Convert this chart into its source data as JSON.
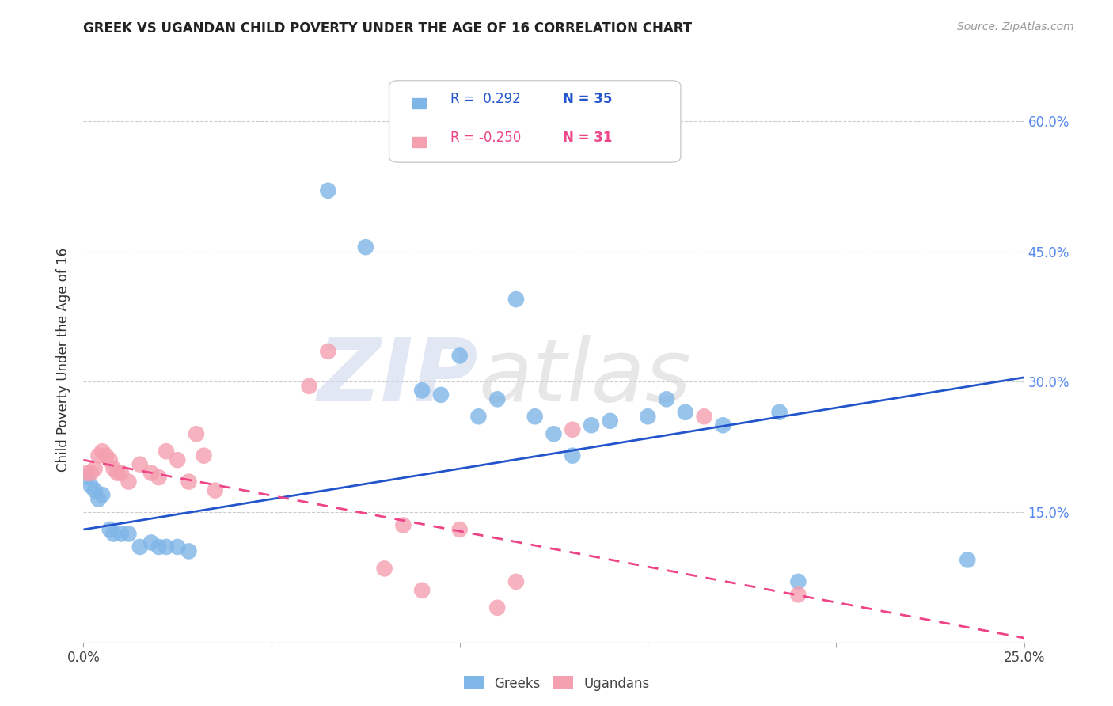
{
  "title": "GREEK VS UGANDAN CHILD POVERTY UNDER THE AGE OF 16 CORRELATION CHART",
  "source": "Source: ZipAtlas.com",
  "ylabel": "Child Poverty Under the Age of 16",
  "xlim": [
    0.0,
    0.25
  ],
  "ylim": [
    0.0,
    0.65
  ],
  "x_ticks": [
    0.0,
    0.05,
    0.1,
    0.15,
    0.2,
    0.25
  ],
  "x_tick_labels": [
    "0.0%",
    "",
    "",
    "",
    "",
    "25.0%"
  ],
  "y_ticks": [
    0.0,
    0.15,
    0.3,
    0.45,
    0.6
  ],
  "y_tick_labels_right": [
    "",
    "15.0%",
    "30.0%",
    "45.0%",
    "60.0%"
  ],
  "grid_color": "#cccccc",
  "background_color": "#ffffff",
  "greek_color": "#7eb6e8",
  "ugandan_color": "#f4a0b0",
  "greek_line_color": "#2255cc",
  "ugandan_line_color": "#ee4488",
  "legend_R_greek": "R =  0.292",
  "legend_N_greek": "N = 35",
  "legend_R_ugandan": "R = -0.250",
  "legend_N_ugandan": "N = 31",
  "greeks_x": [
    0.001,
    0.002,
    0.003,
    0.004,
    0.005,
    0.007,
    0.008,
    0.01,
    0.012,
    0.015,
    0.018,
    0.02,
    0.022,
    0.025,
    0.028,
    0.065,
    0.075,
    0.09,
    0.095,
    0.1,
    0.105,
    0.11,
    0.115,
    0.12,
    0.125,
    0.13,
    0.135,
    0.14,
    0.15,
    0.155,
    0.16,
    0.17,
    0.185,
    0.19,
    0.235
  ],
  "greeks_y": [
    0.19,
    0.18,
    0.175,
    0.165,
    0.17,
    0.13,
    0.125,
    0.125,
    0.125,
    0.11,
    0.115,
    0.11,
    0.11,
    0.11,
    0.105,
    0.52,
    0.455,
    0.29,
    0.285,
    0.33,
    0.26,
    0.28,
    0.395,
    0.26,
    0.24,
    0.215,
    0.25,
    0.255,
    0.26,
    0.28,
    0.265,
    0.25,
    0.265,
    0.07,
    0.095
  ],
  "ugandans_x": [
    0.001,
    0.002,
    0.003,
    0.004,
    0.005,
    0.006,
    0.007,
    0.008,
    0.009,
    0.01,
    0.012,
    0.015,
    0.018,
    0.02,
    0.022,
    0.025,
    0.028,
    0.03,
    0.032,
    0.035,
    0.06,
    0.065,
    0.08,
    0.085,
    0.09,
    0.1,
    0.11,
    0.115,
    0.13,
    0.165,
    0.19
  ],
  "ugandans_y": [
    0.195,
    0.195,
    0.2,
    0.215,
    0.22,
    0.215,
    0.21,
    0.2,
    0.195,
    0.195,
    0.185,
    0.205,
    0.195,
    0.19,
    0.22,
    0.21,
    0.185,
    0.24,
    0.215,
    0.175,
    0.295,
    0.335,
    0.085,
    0.135,
    0.06,
    0.13,
    0.04,
    0.07,
    0.245,
    0.26,
    0.055
  ],
  "greek_line_x0": 0.0,
  "greek_line_y0": 0.13,
  "greek_line_x1": 0.25,
  "greek_line_y1": 0.305,
  "ugandan_line_x0": 0.0,
  "ugandan_line_y0": 0.21,
  "ugandan_line_x1": 0.25,
  "ugandan_line_y1": 0.005
}
